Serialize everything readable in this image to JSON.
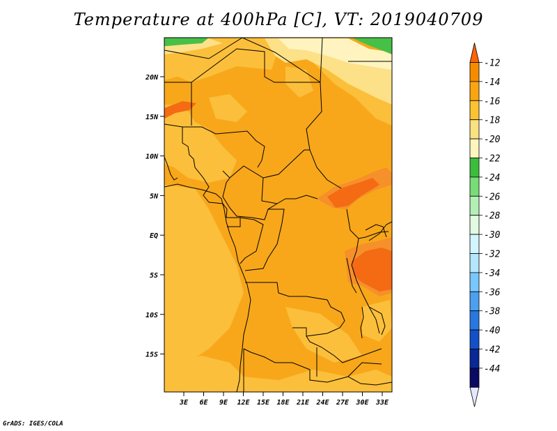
{
  "title": "Temperature at 400hPa [C], VT: 2019040709",
  "credit": "GrADS: IGES/COLA",
  "lat_ticks": [
    "20N",
    "15N",
    "10N",
    "5N",
    "EQ",
    "5S",
    "10S",
    "15S"
  ],
  "lon_ticks": [
    "3E",
    "6E",
    "9E",
    "12E",
    "15E",
    "18E",
    "21E",
    "24E",
    "27E",
    "30E",
    "33E"
  ],
  "colorbar": {
    "labels": [
      "-12",
      "-14",
      "-16",
      "-18",
      "-20",
      "-22",
      "-24",
      "-26",
      "-28",
      "-30",
      "-32",
      "-34",
      "-36",
      "-38",
      "-40",
      "-42",
      "-44"
    ],
    "colors": [
      "#ff6400",
      "#f58c00",
      "#faa50f",
      "#fac332",
      "#fae182",
      "#fff5be",
      "#3cbe3c",
      "#78dc78",
      "#b4f0b4",
      "#e1fae1",
      "#d2f5ff",
      "#b4e6ff",
      "#78c8ff",
      "#4ba0f0",
      "#2878e1",
      "#1450c8",
      "#0a2896",
      "#0a0a64",
      "#e6e6ff"
    ]
  }
}
